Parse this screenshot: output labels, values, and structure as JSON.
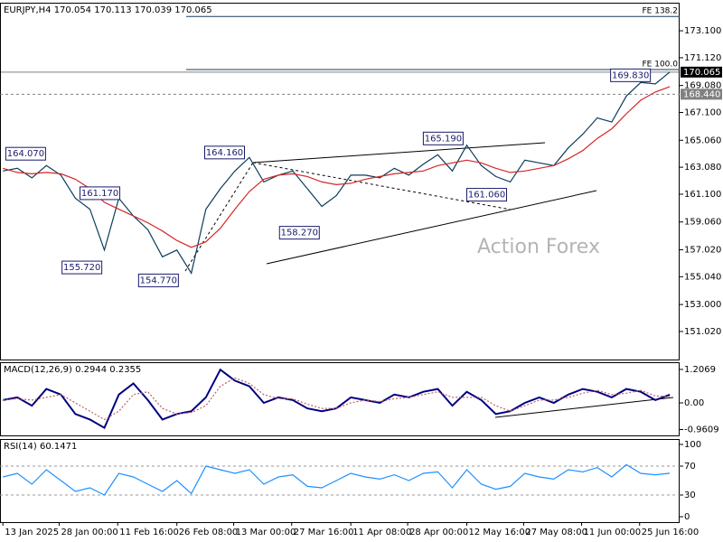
{
  "chart_data": [
    {
      "type": "line",
      "title": "EURJPY,H4  170.054 170.113 170.039 170.065",
      "watermark": "Action Forex",
      "xlim": [
        -0.05,
        11.67
      ],
      "x": [
        0,
        0.25,
        0.5,
        0.75,
        1,
        1.25,
        1.5,
        1.75,
        2,
        2.25,
        2.5,
        2.75,
        3,
        3.25,
        3.5,
        3.75,
        4,
        4.25,
        4.5,
        4.75,
        5,
        5.25,
        5.5,
        5.75,
        6,
        6.25,
        6.5,
        6.75,
        7,
        7.25,
        7.5,
        7.75,
        8,
        8.25,
        8.5,
        8.75,
        9,
        9.25,
        9.5,
        9.75,
        10,
        10.25,
        10.5,
        10.75,
        11,
        11.25,
        11.5
      ],
      "series": [
        {
          "color": "#0b3d5c",
          "values": [
            162.8,
            163.0,
            162.3,
            163.2,
            162.5,
            160.8,
            160.0,
            157.0,
            160.8,
            159.5,
            158.5,
            156.5,
            157.0,
            155.3,
            160.0,
            161.5,
            162.8,
            163.8,
            162.0,
            162.5,
            162.8,
            161.5,
            160.2,
            161.0,
            162.5,
            162.5,
            162.3,
            163.0,
            162.5,
            163.3,
            164.0,
            162.8,
            164.7,
            163.2,
            162.4,
            162.0,
            163.6,
            163.4,
            163.2,
            164.5,
            165.5,
            166.7,
            166.4,
            168.3,
            169.3,
            169.2,
            170.065
          ]
        },
        {
          "color": "#d62728",
          "values": [
            163.0,
            162.7,
            162.6,
            162.7,
            162.6,
            162.2,
            161.5,
            160.5,
            160.0,
            159.5,
            159.0,
            158.4,
            157.7,
            157.2,
            157.6,
            158.6,
            160.0,
            161.3,
            162.2,
            162.5,
            162.6,
            162.4,
            162.0,
            161.8,
            161.9,
            162.2,
            162.4,
            162.6,
            162.7,
            162.8,
            163.2,
            163.4,
            163.6,
            163.4,
            163.0,
            162.7,
            162.8,
            163.0,
            163.2,
            163.7,
            164.3,
            165.2,
            165.9,
            167.0,
            168.0,
            168.6,
            169.0
          ]
        }
      ],
      "ylim": [
        148.96,
        175.16
      ],
      "yticks": [
        {
          "value": 173.1,
          "label": "173.100"
        },
        {
          "value": 171.12,
          "label": "171.120"
        },
        {
          "value": 169.08,
          "label": "169.080"
        },
        {
          "value": 167.1,
          "label": "167.100"
        },
        {
          "value": 165.06,
          "label": "165.060"
        },
        {
          "value": 163.08,
          "label": "163.080"
        },
        {
          "value": 161.1,
          "label": "161.100"
        },
        {
          "value": 159.06,
          "label": "159.060"
        },
        {
          "value": 157.02,
          "label": "157.020"
        },
        {
          "value": 155.04,
          "label": "155.040"
        },
        {
          "value": 153,
          "label": "153.000"
        },
        {
          "value": 151.02,
          "label": "151.020"
        }
      ],
      "annotations": [
        {
          "x": 0.05,
          "value": 164.07,
          "label": "164.070"
        },
        {
          "x": 1.33,
          "value": 161.17,
          "label": "161.170"
        },
        {
          "x": 1.02,
          "value": 155.72,
          "label": "155.720"
        },
        {
          "x": 2.34,
          "value": 154.77,
          "label": "154.770"
        },
        {
          "x": 3.48,
          "value": 164.16,
          "label": "164.160"
        },
        {
          "x": 4.77,
          "value": 158.27,
          "label": "158.270"
        },
        {
          "x": 7.25,
          "value": 165.19,
          "label": "165.190"
        },
        {
          "x": 8.0,
          "value": 161.06,
          "label": "161.060"
        },
        {
          "x": 10.48,
          "value": 169.83,
          "label": "169.830"
        }
      ],
      "fe_lines": [
        {
          "x": 3.16,
          "value": 174.15,
          "label": "FE 138.2"
        },
        {
          "x": 3.16,
          "value": 170.25,
          "label": "FE 100.0"
        }
      ],
      "price_lines": [
        {
          "value": 170.065,
          "label": "170.065",
          "color": "#000000"
        },
        {
          "value": 168.44,
          "label": "168.440",
          "color": "#808080"
        }
      ]
    },
    {
      "type": "line",
      "title": "MACD(12,26,9) 0.2944 0.2355",
      "xlim": [
        -0.05,
        11.67
      ],
      "x": [
        0,
        0.25,
        0.5,
        0.75,
        1,
        1.25,
        1.5,
        1.75,
        2,
        2.25,
        2.5,
        2.75,
        3,
        3.25,
        3.5,
        3.75,
        4,
        4.25,
        4.5,
        4.75,
        5,
        5.25,
        5.5,
        5.75,
        6,
        6.25,
        6.5,
        6.75,
        7,
        7.25,
        7.5,
        7.75,
        8,
        8.25,
        8.5,
        8.75,
        9,
        9.25,
        9.5,
        9.75,
        10,
        10.25,
        10.5,
        10.75,
        11,
        11.25,
        11.5
      ],
      "series": [
        {
          "color": "#000080",
          "values": [
            0.1,
            0.2,
            -0.1,
            0.5,
            0.3,
            -0.4,
            -0.6,
            -0.9,
            0.3,
            0.7,
            0.1,
            -0.6,
            -0.4,
            -0.3,
            0.2,
            1.2,
            0.8,
            0.6,
            0.0,
            0.2,
            0.1,
            -0.2,
            -0.3,
            -0.2,
            0.2,
            0.1,
            0.0,
            0.3,
            0.2,
            0.4,
            0.5,
            -0.1,
            0.4,
            0.1,
            -0.4,
            -0.3,
            0.0,
            0.2,
            0.0,
            0.3,
            0.5,
            0.4,
            0.2,
            0.5,
            0.4,
            0.1,
            0.2944
          ]
        },
        {
          "color": "#c06060",
          "values": [
            0.1,
            0.15,
            0.1,
            0.2,
            0.3,
            0.0,
            -0.3,
            -0.6,
            -0.3,
            0.3,
            0.4,
            -0.2,
            -0.4,
            -0.35,
            -0.1,
            0.6,
            0.9,
            0.7,
            0.3,
            0.15,
            0.15,
            -0.05,
            -0.2,
            -0.2,
            0.0,
            0.1,
            0.05,
            0.15,
            0.2,
            0.3,
            0.4,
            0.2,
            0.2,
            0.2,
            -0.1,
            -0.3,
            -0.1,
            0.1,
            0.1,
            0.2,
            0.35,
            0.45,
            0.3,
            0.35,
            0.45,
            0.25,
            0.2355
          ]
        }
      ],
      "ylim": [
        -1.173,
        1.466
      ],
      "yticks": [
        1.2069,
        {
          "value": 0,
          "label": "0.00"
        },
        -0.9609
      ]
    },
    {
      "type": "line",
      "title": "RSI(14) 60.1471",
      "xlim": [
        -0.05,
        11.67
      ],
      "x": [
        0,
        0.25,
        0.5,
        0.75,
        1,
        1.25,
        1.5,
        1.75,
        2,
        2.25,
        2.5,
        2.75,
        3,
        3.25,
        3.5,
        3.75,
        4,
        4.25,
        4.5,
        4.75,
        5,
        5.25,
        5.5,
        5.75,
        6,
        6.25,
        6.5,
        6.75,
        7,
        7.25,
        7.5,
        7.75,
        8,
        8.25,
        8.5,
        8.75,
        9,
        9.25,
        9.5,
        9.75,
        10,
        10.25,
        10.5,
        10.75,
        11,
        11.25,
        11.5
      ],
      "series": [
        {
          "color": "#1e90ff",
          "values": [
            55,
            60,
            45,
            65,
            50,
            35,
            40,
            30,
            60,
            55,
            45,
            35,
            50,
            32,
            70,
            65,
            60,
            65,
            45,
            55,
            58,
            42,
            40,
            50,
            60,
            55,
            52,
            58,
            50,
            60,
            62,
            40,
            65,
            45,
            38,
            42,
            60,
            55,
            52,
            65,
            62,
            68,
            55,
            72,
            60,
            58,
            60.1471
          ]
        }
      ],
      "ylim": [
        -7.5,
        107.5
      ],
      "yticks": [
        100,
        70,
        30,
        0
      ],
      "levels": [
        70,
        30
      ],
      "xticks": [
        {
          "value": 0,
          "label": "13 Jan 2025"
        },
        {
          "value": 0.97,
          "label": "28 Jan 00:00"
        },
        {
          "value": 1.98,
          "label": "11 Feb 16:00"
        },
        {
          "value": 3.0,
          "label": "26 Feb 08:00"
        },
        {
          "value": 3.98,
          "label": "13 Mar 00:00"
        },
        {
          "value": 4.98,
          "label": "27 Mar 16:00"
        },
        {
          "value": 6.0,
          "label": "11 Apr 08:00"
        },
        {
          "value": 6.98,
          "label": "28 Apr 00:00"
        },
        {
          "value": 8.0,
          "label": "12 May 16:00"
        },
        {
          "value": 8.98,
          "label": "27 May 08:00"
        },
        {
          "value": 9.98,
          "label": "11 Jun 00:00"
        },
        {
          "value": 10.98,
          "label": "25 Jun 16:00"
        }
      ]
    }
  ]
}
